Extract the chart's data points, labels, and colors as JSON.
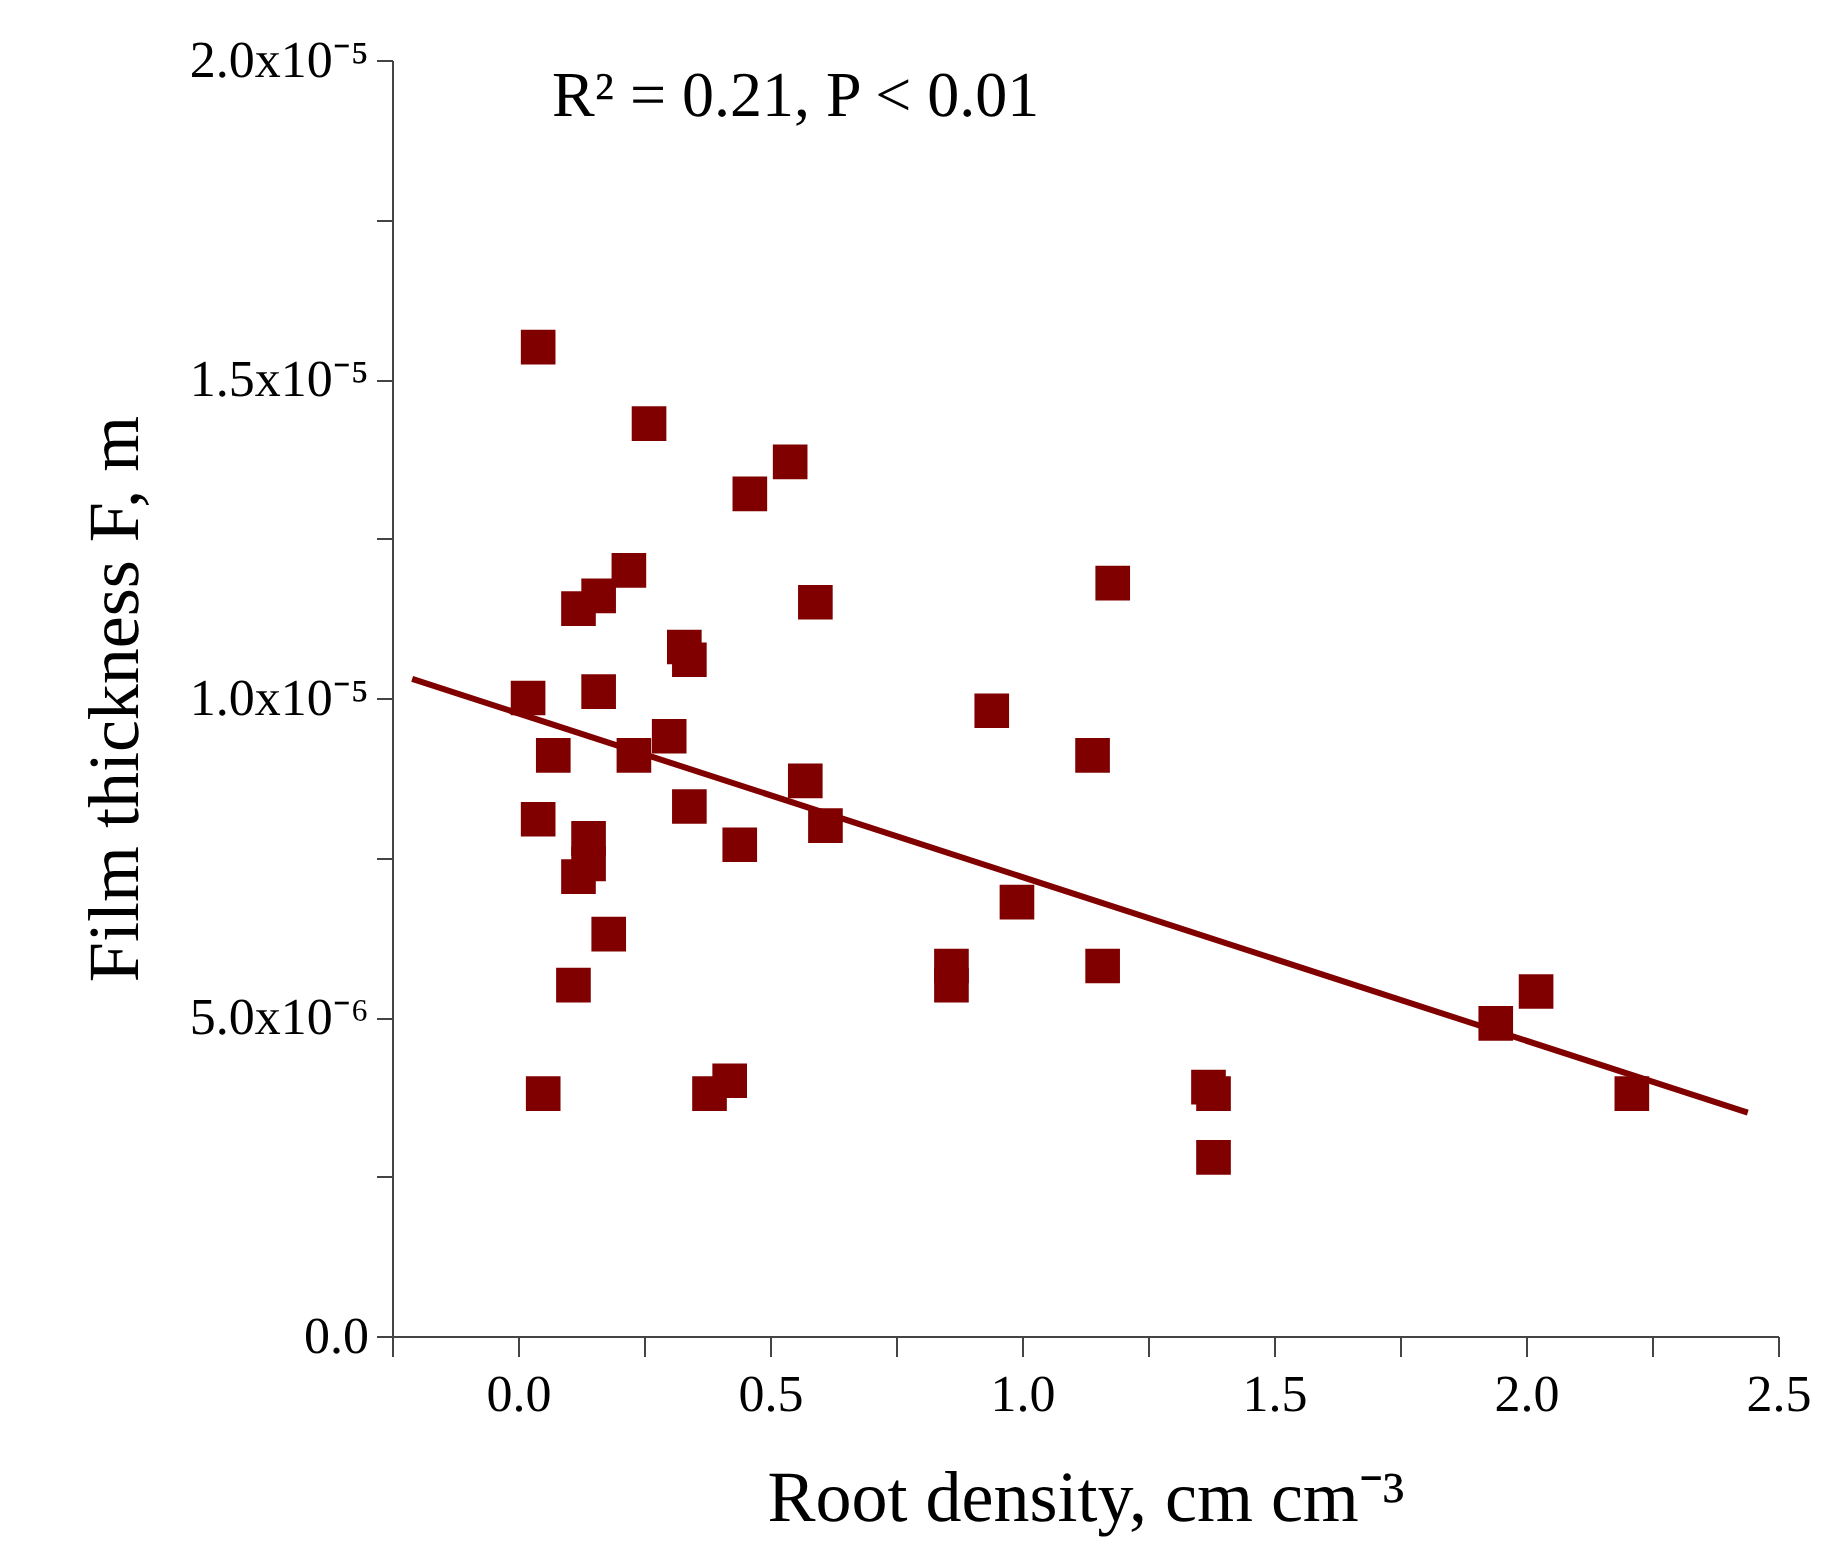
{
  "chart_data": {
    "type": "scatter",
    "xlabel": "Root density, cm cm⁻³",
    "ylabel": "Film thickness F, m",
    "annotations": [
      "R² = 0.21, P < 0.01"
    ],
    "xlim": [
      -0.25,
      2.5
    ],
    "xticks": [
      {
        "value": -0.25,
        "label": null
      },
      {
        "value": 0,
        "label": "0.0"
      },
      {
        "value": 0.25,
        "label": null
      },
      {
        "value": 0.5,
        "label": "0.5"
      },
      {
        "value": 0.75,
        "label": null
      },
      {
        "value": 1,
        "label": "1.0"
      },
      {
        "value": 1.25,
        "label": null
      },
      {
        "value": 1.5,
        "label": "1.5"
      },
      {
        "value": 1.75,
        "label": null
      },
      {
        "value": 2,
        "label": "2.0"
      },
      {
        "value": 2.25,
        "label": null
      },
      {
        "value": 2.5,
        "label": "2.5"
      }
    ],
    "ylim": [
      0,
      2e-05
    ],
    "yticks": [
      {
        "value": 0,
        "label": "0.0"
      },
      {
        "value": 2.5e-06,
        "label": null
      },
      {
        "value": 5e-06,
        "label": "5.0x10⁻⁶"
      },
      {
        "value": 7.5e-06,
        "label": null
      },
      {
        "value": 1e-05,
        "label": "1.0x10⁻⁵"
      },
      {
        "value": 1.25e-05,
        "label": null
      },
      {
        "value": 1.5e-05,
        "label": "1.5x10⁻⁵"
      },
      {
        "value": 1.75e-05,
        "label": null
      },
      {
        "value": 2e-05,
        "label": "2.0x10⁻⁵"
      }
    ],
    "grid": false,
    "series": [
      {
        "color": "#800000",
        "marker": "square",
        "x": [
          0.04,
          0.26,
          0.54,
          0.46,
          0.22,
          0.16,
          0.12,
          0.59,
          1.18,
          0.33,
          0.34,
          0.02,
          0.16,
          0.3,
          0.07,
          0.23,
          0.94,
          1.14,
          0.57,
          0.04,
          0.34,
          0.61,
          0.14,
          0.14,
          0.12,
          0.44,
          0.18,
          0.99,
          0.86,
          0.86,
          1.16,
          0.11,
          1.94,
          2.02,
          0.05,
          0.38,
          0.42,
          1.37,
          1.38,
          1.38,
          2.21
        ],
        "values": [
          1.55e-05,
          1.43e-05,
          1.37e-05,
          1.32e-05,
          1.2e-05,
          1.16e-05,
          1.14e-05,
          1.15e-05,
          1.18e-05,
          1.08e-05,
          1.06e-05,
          1e-05,
          1.01e-05,
          9.4e-06,
          9.1e-06,
          9.1e-06,
          9.8e-06,
          9.1e-06,
          8.7e-06,
          8.1e-06,
          8.3e-06,
          8e-06,
          7.8e-06,
          7.4e-06,
          7.2e-06,
          7.7e-06,
          6.3e-06,
          6.8e-06,
          5.8e-06,
          5.5e-06,
          5.8e-06,
          5.5e-06,
          4.9e-06,
          5.4e-06,
          3.8e-06,
          3.8e-06,
          4e-06,
          3.9e-06,
          3.8e-06,
          2.8e-06,
          3.8e-06
        ]
      },
      {
        "type": "line",
        "color": "#800000",
        "x": [
          -0.21,
          2.44
        ],
        "values": [
          1.03e-05,
          3.5e-06
        ]
      }
    ]
  }
}
